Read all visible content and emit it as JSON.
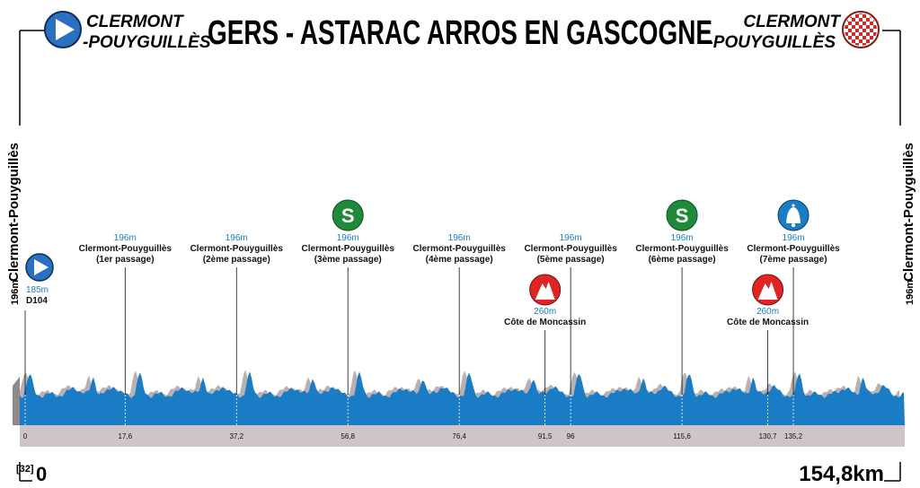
{
  "header": {
    "title": "GERS - ASTARAC ARROS EN GASCOGNE",
    "start_line1": "CLERMONT",
    "start_line2": "-POUYGUILLÈS",
    "finish_line1": "CLERMONT",
    "finish_line2": "-POUYGUILLÈS"
  },
  "side": {
    "left_alt": "196m",
    "left_name": "Clermont-Pouyguillès",
    "right_alt": "196m",
    "right_name": "Clermont-Pouyguillès"
  },
  "footer": {
    "code": "[32]",
    "start_km": "0",
    "total": "154,8km"
  },
  "colors": {
    "profile": "#1a7cc4",
    "shadow": "#b9b0b2",
    "band": "#cdc5c7",
    "sprint": "#1e8a3a",
    "climb": "#e02424",
    "bell": "#1a7cc4",
    "start": "#2a6fc2"
  },
  "chart_data": {
    "type": "area",
    "km_total": 154.8,
    "xlim": [
      0,
      154.8
    ],
    "tick_labels": [
      "0",
      "17,6",
      "37,2",
      "56,8",
      "76,4",
      "91,5",
      "96",
      "115,6",
      "130,7",
      "135,2"
    ],
    "waypoints": [
      {
        "km": 0,
        "km_label": "0",
        "alt": "185m",
        "name1": "D104",
        "name2": "",
        "icon": "start-icon",
        "icon_letter": ""
      },
      {
        "km": 17.6,
        "km_label": "17,6",
        "alt": "196m",
        "name1": "Clermont-Pouyguillès",
        "name2": "(1er passage)",
        "icon": "",
        "icon_letter": ""
      },
      {
        "km": 37.2,
        "km_label": "37,2",
        "alt": "196m",
        "name1": "Clermont-Pouyguillès",
        "name2": "(2ème passage)",
        "icon": "",
        "icon_letter": ""
      },
      {
        "km": 56.8,
        "km_label": "56,8",
        "alt": "196m",
        "name1": "Clermont-Pouyguillès",
        "name2": "(3ème passage)",
        "icon": "sprint-icon",
        "icon_letter": "S"
      },
      {
        "km": 76.4,
        "km_label": "76,4",
        "alt": "196m",
        "name1": "Clermont-Pouyguillès",
        "name2": "(4ème passage)",
        "icon": "",
        "icon_letter": ""
      },
      {
        "km": 91.5,
        "km_label": "91,5",
        "alt": "260m",
        "name1": "Côte de Moncassin",
        "name2": "",
        "icon": "climb-icon",
        "icon_letter": "3"
      },
      {
        "km": 96,
        "km_label": "96",
        "alt": "196m",
        "name1": "Clermont-Pouyguillès",
        "name2": "(5ème passage)",
        "icon": "",
        "icon_letter": ""
      },
      {
        "km": 115.6,
        "km_label": "115,6",
        "alt": "196m",
        "name1": "Clermont-Pouyguillès",
        "name2": "(6ème passage)",
        "icon": "sprint-icon",
        "icon_letter": "S"
      },
      {
        "km": 130.7,
        "km_label": "130,7",
        "alt": "260m",
        "name1": "Côte de Moncassin",
        "name2": "",
        "icon": "climb-icon",
        "icon_letter": "3"
      },
      {
        "km": 135.2,
        "km_label": "135,2",
        "alt": "196m",
        "name1": "Clermont-Pouyguillès",
        "name2": "(7ème passage)",
        "icon": "bell-icon",
        "icon_letter": ""
      }
    ]
  }
}
